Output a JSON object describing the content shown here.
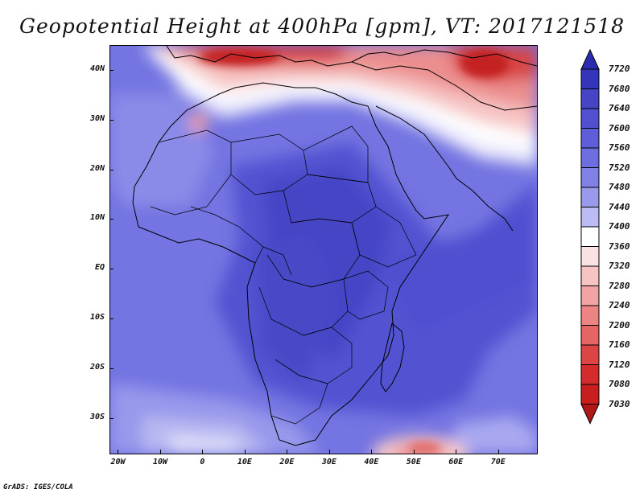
{
  "title": "Geopotential Height at 400hPa [gpm], VT: 2017121518",
  "footer": "GrADS: IGES/COLA",
  "axes": {
    "lat_labels": [
      "40N",
      "30N",
      "20N",
      "10N",
      "EQ",
      "10S",
      "20S",
      "30S"
    ],
    "lon_labels": [
      "20W",
      "10W",
      "0",
      "10E",
      "20E",
      "30E",
      "40E",
      "50E",
      "60E",
      "70E"
    ],
    "lat_range": [
      -37,
      45
    ],
    "lon_range": [
      -22,
      79
    ]
  },
  "colorbar": {
    "levels": [
      "7720",
      "7680",
      "7640",
      "7600",
      "7560",
      "7520",
      "7480",
      "7440",
      "7400",
      "7360",
      "7320",
      "7280",
      "7240",
      "7200",
      "7160",
      "7120",
      "7080",
      "7030"
    ],
    "colors": [
      "#2b2bb0",
      "#3535bc",
      "#4545c6",
      "#5050d0",
      "#5e5ed8",
      "#6e6ee0",
      "#8080e6",
      "#9a9aec",
      "#bcbcf4",
      "#ffffff",
      "#fbe2e2",
      "#f7c4c4",
      "#f2a4a4",
      "#ec8484",
      "#e56464",
      "#dd4444",
      "#d42c2c",
      "#c81e1e",
      "#b01818"
    ]
  }
}
